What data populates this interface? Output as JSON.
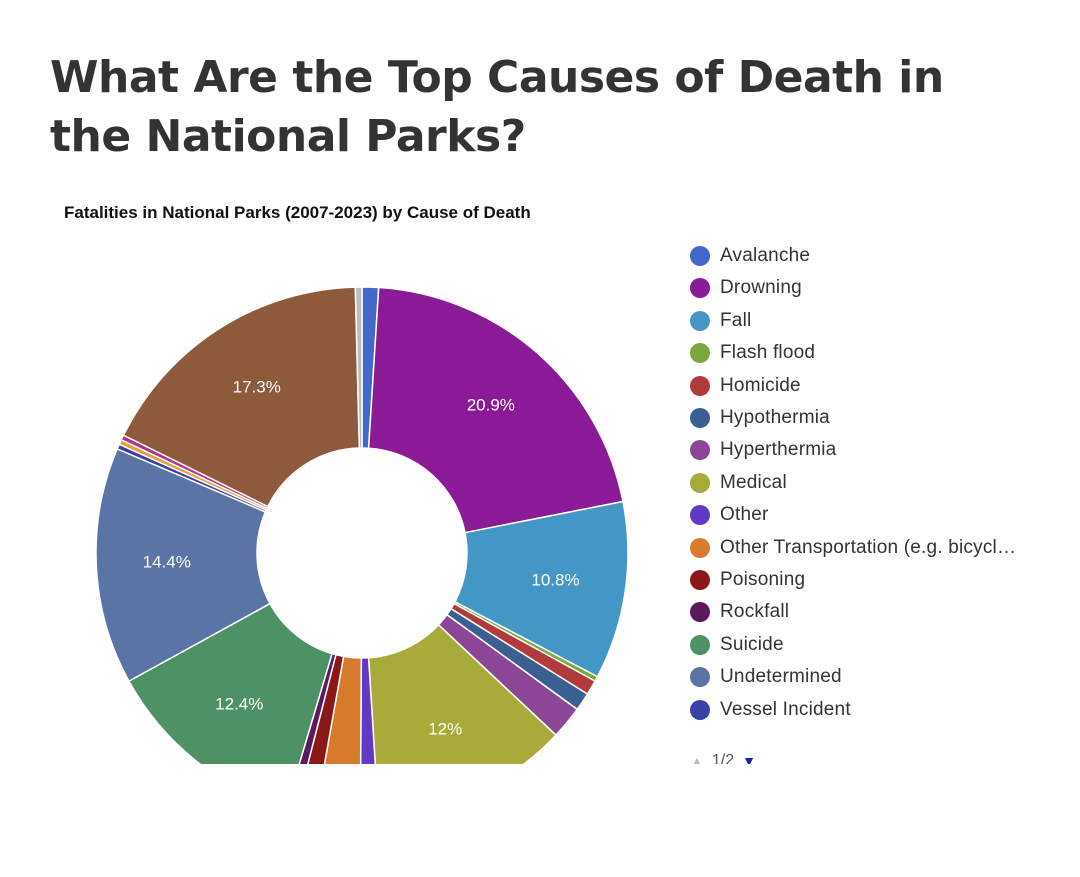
{
  "page": {
    "heading": "What Are the Top Causes of Death in the National Parks?"
  },
  "legend_pager": {
    "text": "1/2",
    "up_icon": "triangle-up-icon",
    "down_icon": "triangle-down-icon"
  },
  "chart_data": {
    "type": "pie",
    "donut": true,
    "title": "Fatalities in National Parks (2007-2023) by Cause of Death",
    "legend_position": "right",
    "legend": [
      {
        "label": "Avalanche",
        "color": "#4468c9"
      },
      {
        "label": "Drowning",
        "color": "#8b1a97"
      },
      {
        "label": "Fall",
        "color": "#4497c5"
      },
      {
        "label": "Flash flood",
        "color": "#7ba83a"
      },
      {
        "label": "Homicide",
        "color": "#b13a3a"
      },
      {
        "label": "Hypothermia",
        "color": "#3b5f91"
      },
      {
        "label": "Hyperthermia",
        "color": "#8b4796"
      },
      {
        "label": "Medical",
        "color": "#a8aa3a"
      },
      {
        "label": "Other",
        "color": "#6239c4"
      },
      {
        "label": "Other Transportation (e.g. bicycl…",
        "color": "#d97b2c"
      },
      {
        "label": "Poisoning",
        "color": "#8a1818"
      },
      {
        "label": "Rockfall",
        "color": "#5a1a5c"
      },
      {
        "label": "Suicide",
        "color": "#4e9164"
      },
      {
        "label": "Undetermined",
        "color": "#5b74a6"
      },
      {
        "label": "Vessel Incident",
        "color": "#3b3fa8"
      }
    ],
    "slices": [
      {
        "name": "Avalanche",
        "value": 1.0,
        "color": "#4468c9",
        "label": ""
      },
      {
        "name": "Drowning",
        "value": 20.9,
        "color": "#8b1a97",
        "label": "20.9%"
      },
      {
        "name": "Fall",
        "value": 10.8,
        "color": "#4497c5",
        "label": "10.8%"
      },
      {
        "name": "Flash flood",
        "value": 0.3,
        "color": "#7ba83a",
        "label": ""
      },
      {
        "name": "Homicide",
        "value": 0.9,
        "color": "#b13a3a",
        "label": ""
      },
      {
        "name": "Hypothermia",
        "value": 1.1,
        "color": "#3b5f91",
        "label": ""
      },
      {
        "name": "Hyperthermia",
        "value": 2.0,
        "color": "#8b4796",
        "label": ""
      },
      {
        "name": "Medical",
        "value": 12.0,
        "color": "#a8aa3a",
        "label": "12%"
      },
      {
        "name": "Other",
        "value": 1.1,
        "color": "#6239c4",
        "label": ""
      },
      {
        "name": "Other Transportation (e.g. bicycl…",
        "value": 2.7,
        "color": "#d97b2c",
        "label": ""
      },
      {
        "name": "Poisoning",
        "value": 1.2,
        "color": "#8a1818",
        "label": ""
      },
      {
        "name": "Rockfall",
        "value": 0.6,
        "color": "#5a1a5c",
        "label": ""
      },
      {
        "name": "Suicide",
        "value": 12.4,
        "color": "#4e9164",
        "label": "12.4%"
      },
      {
        "name": "Undetermined",
        "value": 14.4,
        "color": "#5b74a6",
        "label": "14.4%"
      },
      {
        "name": "Vessel Incident",
        "value": 0.3,
        "color": "#3b3fa8",
        "label": ""
      },
      {
        "name": "",
        "value": 0.3,
        "color": "#e3a035",
        "label": ""
      },
      {
        "name": "",
        "value": 0.3,
        "color": "#b82e8a",
        "label": ""
      },
      {
        "name": "",
        "value": 17.3,
        "color": "#8e5a3c",
        "label": "17.3%"
      },
      {
        "name": "",
        "value": 0.4,
        "color": "#bdbdbd",
        "label": ""
      }
    ]
  }
}
